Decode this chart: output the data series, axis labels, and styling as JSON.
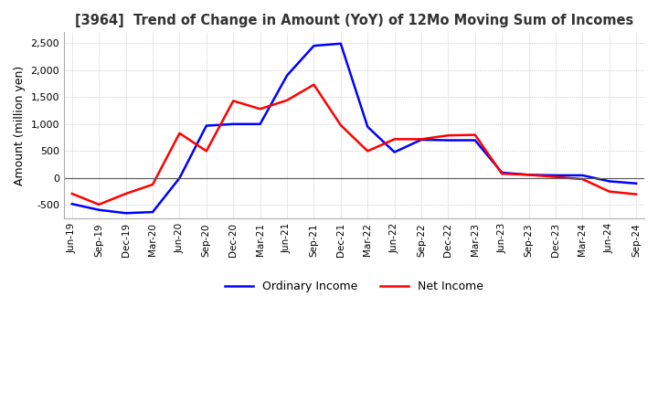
{
  "title": "[3964]  Trend of Change in Amount (YoY) of 12Mo Moving Sum of Incomes",
  "ylabel": "Amount (million yen)",
  "ylim": [
    -750,
    2700
  ],
  "yticks": [
    -500,
    0,
    500,
    1000,
    1500,
    2000,
    2500
  ],
  "x_labels": [
    "Jun-19",
    "Sep-19",
    "Dec-19",
    "Mar-20",
    "Jun-20",
    "Sep-20",
    "Dec-20",
    "Mar-21",
    "Jun-21",
    "Sep-21",
    "Dec-21",
    "Mar-22",
    "Jun-22",
    "Sep-22",
    "Dec-22",
    "Mar-23",
    "Jun-23",
    "Sep-23",
    "Dec-23",
    "Mar-24",
    "Jun-24",
    "Sep-24"
  ],
  "ordinary_income": [
    -480,
    -590,
    -650,
    -630,
    0,
    970,
    1000,
    1000,
    1900,
    2450,
    2490,
    950,
    480,
    710,
    700,
    700,
    100,
    60,
    50,
    50,
    -60,
    -100
  ],
  "net_income": [
    -290,
    -490,
    -290,
    -120,
    830,
    500,
    1430,
    1280,
    1440,
    1730,
    980,
    500,
    720,
    720,
    790,
    800,
    80,
    60,
    20,
    -20,
    -250,
    -300
  ],
  "ordinary_income_color": "#0000FF",
  "net_income_color": "#FF0000",
  "line_width": 1.8,
  "grid_color": "#aaaaaa",
  "background_color": "#ffffff",
  "legend_labels": [
    "Ordinary Income",
    "Net Income"
  ]
}
